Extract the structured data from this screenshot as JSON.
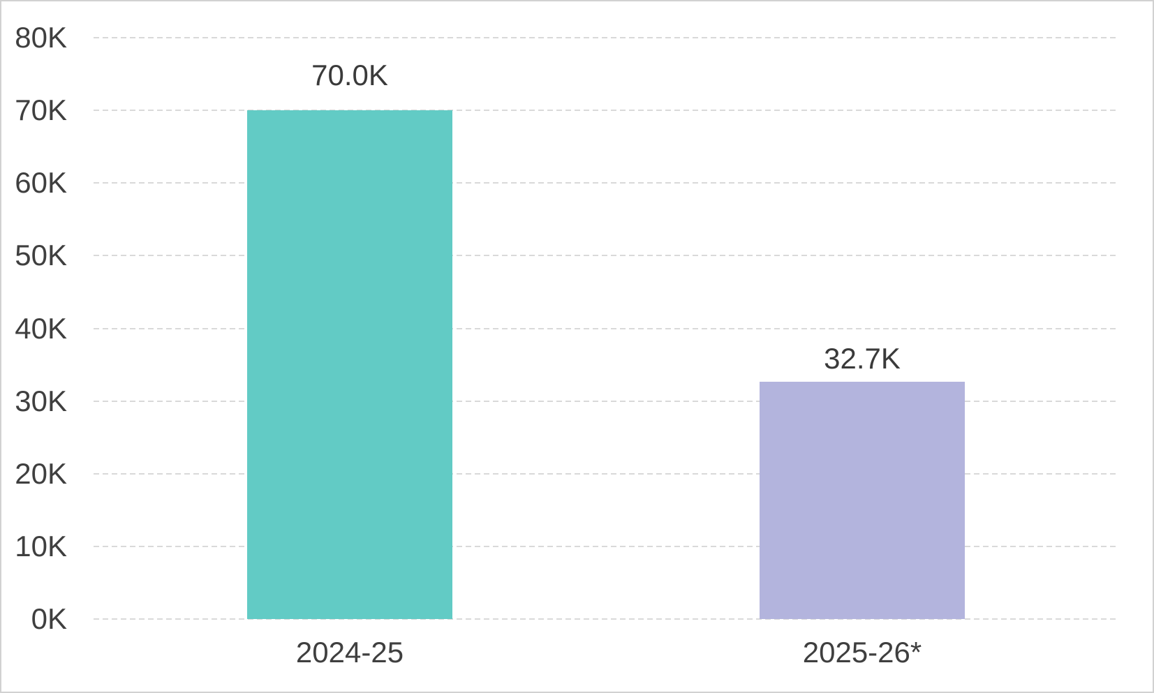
{
  "chart_data": {
    "type": "bar",
    "title": "",
    "xlabel": "",
    "ylabel": "",
    "categories": [
      "2024-25",
      "2025-26*"
    ],
    "values": [
      70000,
      32700
    ],
    "value_labels": [
      "70.0K",
      "32.7K"
    ],
    "series": [
      {
        "name": "2024-25",
        "value": 70000,
        "label": "70.0K",
        "color": "#62cbc5"
      },
      {
        "name": "2025-26*",
        "value": 32700,
        "label": "32.7K",
        "color": "#b3b4dd"
      }
    ],
    "bar_colors": [
      "#62cbc5",
      "#b3b4dd"
    ],
    "ylim": [
      0,
      80000
    ],
    "ytick_step": 10000,
    "ytick_labels": [
      "0K",
      "10K",
      "20K",
      "30K",
      "40K",
      "50K",
      "60K",
      "70K",
      "80K"
    ],
    "grid": "horizontal-dashed",
    "legend": "none",
    "colors": {
      "text": "#3f3f3f",
      "gridline": "#d9d9d9",
      "background": "#ffffff",
      "border": "#d1d1d1"
    }
  }
}
